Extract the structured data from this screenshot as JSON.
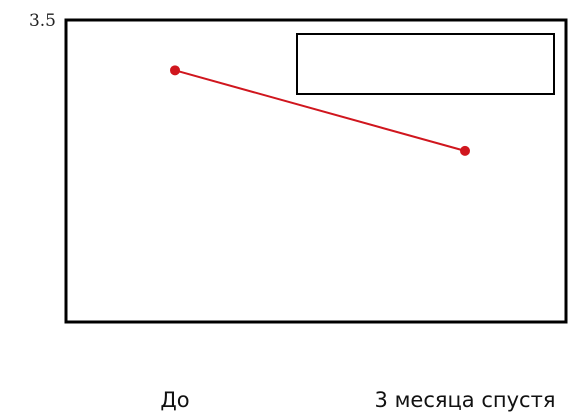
{
  "chart_data": {
    "type": "line",
    "categories": [
      "До",
      "3 месяца спустя"
    ],
    "series": [
      {
        "values": [
          3.25,
          2.85
        ],
        "color": "#d0161e"
      }
    ],
    "yticks": [
      3.5
    ],
    "ytick_labels": [
      "3.5"
    ],
    "ylim": [
      2.0,
      3.5
    ],
    "grid": false,
    "legend": "top-right",
    "legend_entries": []
  }
}
